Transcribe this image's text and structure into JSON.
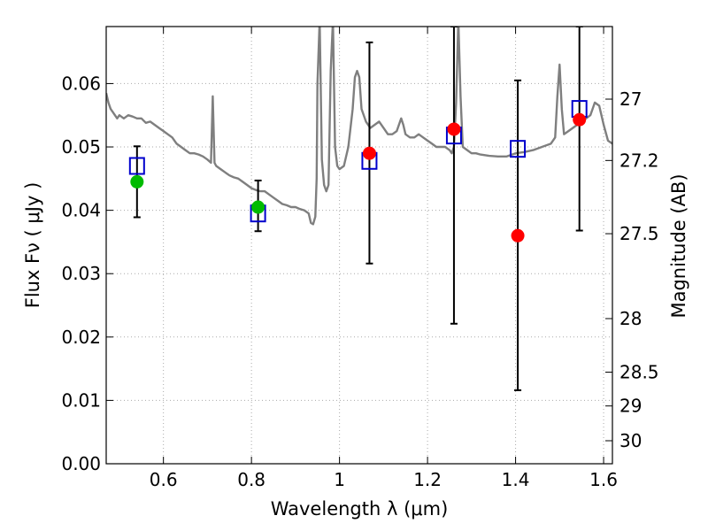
{
  "chart_data": {
    "type": "scatter",
    "title": "",
    "xlabel": "Wavelength  λ (μm)",
    "ylabel": "Flux  Fν  ( μJy )",
    "ylabel_right": "Magnitude (AB)",
    "xlim": [
      0.47,
      1.62
    ],
    "ylim": [
      0.0,
      0.069
    ],
    "grid": true,
    "x_ticks": [
      0.6,
      0.8,
      1.0,
      1.2,
      1.4,
      1.6
    ],
    "x_tick_labels": [
      "0.6",
      "0.8",
      "1",
      "1.2",
      "1.4",
      "1.6"
    ],
    "y_ticks": [
      0.0,
      0.01,
      0.02,
      0.03,
      0.04,
      0.05,
      0.06
    ],
    "y_tick_labels": [
      "0.00",
      "0.01",
      "0.02",
      "0.03",
      "0.04",
      "0.05",
      "0.06"
    ],
    "mag_ticks": [
      27,
      27.2,
      27.5,
      28,
      28.5,
      29,
      30
    ],
    "mag_tick_labels": [
      "27",
      "27.2",
      "27.5",
      "28",
      "28.5",
      "29",
      "30"
    ],
    "colors": {
      "model_line": "#7f7f7f",
      "green_points": "#00bb00",
      "red_points": "#ff0000",
      "model_boxes": "#0000cc",
      "errorbars": "#000000",
      "grid": "#aaaaaa"
    },
    "series": [
      {
        "name": "model spectrum",
        "type": "line",
        "x": [
          0.47,
          0.475,
          0.48,
          0.485,
          0.49,
          0.495,
          0.5,
          0.51,
          0.52,
          0.53,
          0.54,
          0.55,
          0.56,
          0.57,
          0.58,
          0.59,
          0.6,
          0.61,
          0.62,
          0.63,
          0.64,
          0.65,
          0.66,
          0.67,
          0.68,
          0.69,
          0.7,
          0.708,
          0.712,
          0.716,
          0.72,
          0.73,
          0.74,
          0.75,
          0.76,
          0.77,
          0.78,
          0.79,
          0.8,
          0.81,
          0.82,
          0.83,
          0.84,
          0.85,
          0.86,
          0.87,
          0.88,
          0.89,
          0.9,
          0.91,
          0.92,
          0.93,
          0.935,
          0.94,
          0.945,
          0.948,
          0.95,
          0.955,
          0.96,
          0.965,
          0.97,
          0.975,
          0.98,
          0.985,
          0.99,
          0.995,
          1.0,
          1.01,
          1.02,
          1.03,
          1.035,
          1.04,
          1.045,
          1.05,
          1.06,
          1.07,
          1.08,
          1.09,
          1.1,
          1.11,
          1.12,
          1.13,
          1.14,
          1.145,
          1.15,
          1.16,
          1.17,
          1.18,
          1.19,
          1.2,
          1.21,
          1.22,
          1.23,
          1.24,
          1.25,
          1.255,
          1.26,
          1.265,
          1.27,
          1.275,
          1.28,
          1.29,
          1.3,
          1.31,
          1.32,
          1.34,
          1.36,
          1.38,
          1.4,
          1.42,
          1.44,
          1.46,
          1.48,
          1.49,
          1.495,
          1.5,
          1.505,
          1.51,
          1.52,
          1.53,
          1.54,
          1.55,
          1.56,
          1.57,
          1.575,
          1.58,
          1.59,
          1.6,
          1.61,
          1.62
        ],
        "y": [
          0.0585,
          0.057,
          0.056,
          0.0555,
          0.055,
          0.0545,
          0.055,
          0.0545,
          0.055,
          0.0548,
          0.0545,
          0.0545,
          0.0538,
          0.054,
          0.0535,
          0.053,
          0.0525,
          0.052,
          0.0515,
          0.0505,
          0.05,
          0.0495,
          0.049,
          0.049,
          0.0488,
          0.0485,
          0.048,
          0.0475,
          0.058,
          0.0475,
          0.047,
          0.0465,
          0.046,
          0.0455,
          0.0452,
          0.045,
          0.0445,
          0.044,
          0.0435,
          0.0432,
          0.043,
          0.043,
          0.0425,
          0.042,
          0.0415,
          0.041,
          0.0408,
          0.0405,
          0.0405,
          0.0402,
          0.04,
          0.0395,
          0.038,
          0.0378,
          0.039,
          0.045,
          0.06,
          0.07,
          0.048,
          0.044,
          0.043,
          0.044,
          0.062,
          0.07,
          0.05,
          0.047,
          0.0465,
          0.047,
          0.05,
          0.056,
          0.061,
          0.062,
          0.061,
          0.056,
          0.054,
          0.053,
          0.0535,
          0.054,
          0.053,
          0.052,
          0.052,
          0.0525,
          0.0545,
          0.0535,
          0.052,
          0.0515,
          0.0515,
          0.052,
          0.0515,
          0.051,
          0.0505,
          0.05,
          0.05,
          0.05,
          0.0495,
          0.049,
          0.05,
          0.057,
          0.07,
          0.058,
          0.05,
          0.0495,
          0.049,
          0.049,
          0.0488,
          0.0486,
          0.0485,
          0.0485,
          0.049,
          0.0492,
          0.0495,
          0.05,
          0.0505,
          0.0515,
          0.058,
          0.063,
          0.056,
          0.052,
          0.0525,
          0.053,
          0.0535,
          0.054,
          0.0545,
          0.055,
          0.056,
          0.057,
          0.0565,
          0.0535,
          0.051,
          0.0505
        ]
      },
      {
        "name": "green photometry",
        "type": "scatter",
        "x": [
          0.54,
          0.815
        ],
        "y": [
          0.0445,
          0.0405
        ]
      },
      {
        "name": "red photometry",
        "type": "scatter",
        "x": [
          1.068,
          1.26,
          1.405,
          1.545
        ],
        "y": [
          0.049,
          0.0528,
          0.036,
          0.0543
        ]
      },
      {
        "name": "model band flux",
        "type": "scatter",
        "x": [
          0.54,
          0.815,
          1.068,
          1.26,
          1.405,
          1.545
        ],
        "y": [
          0.047,
          0.0395,
          0.0478,
          0.0518,
          0.0497,
          0.056
        ]
      },
      {
        "name": "error bars",
        "type": "errorbar",
        "x": [
          0.54,
          0.815,
          1.068,
          1.26,
          1.405,
          1.545
        ],
        "ylow": [
          0.0389,
          0.0367,
          0.0316,
          0.0221,
          0.0116,
          0.0368
        ],
        "yhigh": [
          0.0501,
          0.0447,
          0.0665,
          0.069,
          0.0605,
          0.069
        ]
      }
    ]
  }
}
